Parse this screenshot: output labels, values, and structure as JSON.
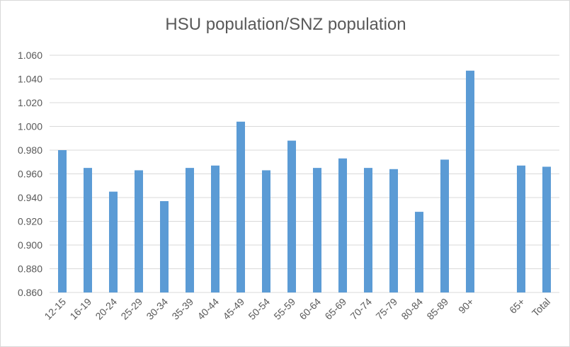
{
  "chart_data": {
    "type": "bar",
    "title": "HSU population/SNZ population",
    "xlabel": "",
    "ylabel": "",
    "categories": [
      "12-15",
      "16-19",
      "20-24",
      "25-29",
      "30-34",
      "35-39",
      "40-44",
      "45-49",
      "50-54",
      "55-59",
      "60-64",
      "65-69",
      "70-74",
      "75-79",
      "80-84",
      "85-89",
      "90+",
      "",
      "65+",
      "Total"
    ],
    "values": [
      0.98,
      0.965,
      0.945,
      0.963,
      0.937,
      0.965,
      0.967,
      1.004,
      0.963,
      0.988,
      0.965,
      0.973,
      0.965,
      0.964,
      0.928,
      0.972,
      1.047,
      null,
      0.967,
      0.966
    ],
    "ylim": [
      0.86,
      1.06
    ],
    "yticks": [
      "0.860",
      "0.880",
      "0.900",
      "0.920",
      "0.940",
      "0.960",
      "0.980",
      "1.000",
      "1.020",
      "1.040",
      "1.060"
    ],
    "grid": true,
    "bar_color": "#5b9bd5",
    "grid_color": "#d9d9d9"
  }
}
